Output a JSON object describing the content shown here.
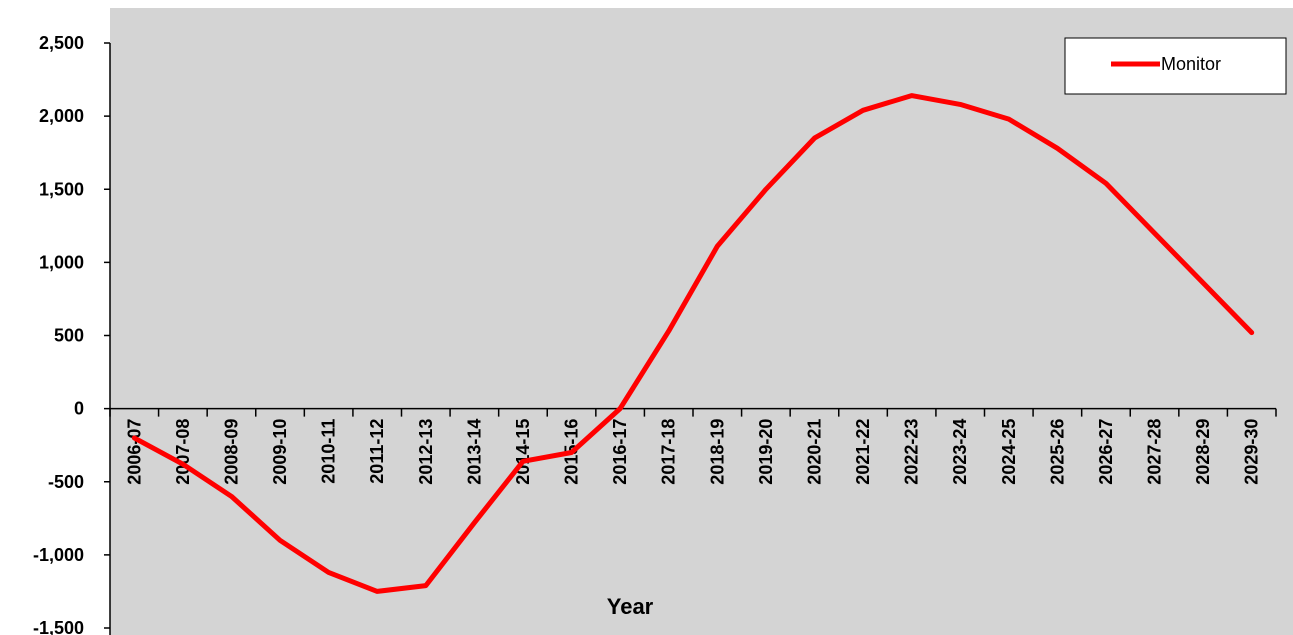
{
  "chart_data": {
    "type": "line",
    "title": "",
    "xlabel": "Year",
    "ylabel": "",
    "ylim": [
      -1500,
      2500
    ],
    "yticks": [
      2500,
      2000,
      1500,
      1000,
      500,
      0,
      -500,
      -1000,
      -1500
    ],
    "ytick_labels": [
      "2,500",
      "2,000",
      "1,500",
      "1,000",
      "500",
      "0",
      "-500",
      "-1,000",
      "-1,500"
    ],
    "categories": [
      "2006-07",
      "2007-08",
      "2008-09",
      "2009-10",
      "2010-11",
      "2011-12",
      "2012-13",
      "2013-14",
      "2014-15",
      "2015-16",
      "2016-17",
      "2017-18",
      "2018-19",
      "2019-20",
      "2020-21",
      "2021-22",
      "2022-23",
      "2023-24",
      "2024-25",
      "2025-26",
      "2026-27",
      "2027-28",
      "2028-29",
      "2029-30"
    ],
    "series": [
      {
        "name": "Monitor",
        "color": "#ff0000",
        "values": [
          -200,
          -380,
          -600,
          -900,
          -1120,
          -1250,
          -1210,
          -780,
          -360,
          -300,
          0,
          530,
          1110,
          1500,
          1850,
          2040,
          2140,
          2080,
          1980,
          1780,
          1540,
          1200,
          860,
          520
        ]
      }
    ],
    "grid": false,
    "legend": "top-right",
    "background": "#d4d4d4"
  }
}
